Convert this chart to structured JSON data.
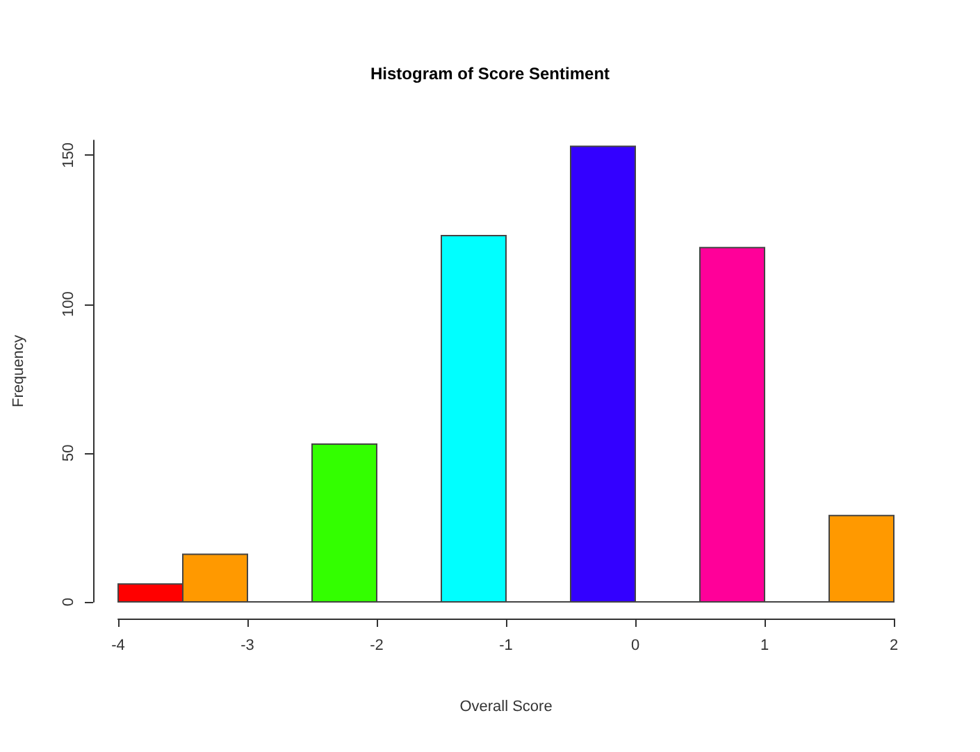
{
  "chart_data": {
    "type": "histogram",
    "title": "Histogram of Score Sentiment",
    "xlabel": "Overall Score",
    "ylabel": "Frequency",
    "bins": [
      -4,
      -3.5,
      -3,
      -2.5,
      -2,
      -1.5,
      -1,
      -0.5,
      0,
      0.5,
      1,
      1.5,
      2
    ],
    "values": [
      6,
      16,
      0,
      53,
      0,
      123,
      0,
      153,
      0,
      119,
      0,
      29
    ],
    "colors": [
      "#ff0000",
      "#ff9900",
      "#444444",
      "#33ff00",
      "#444444",
      "#00ffff",
      "#444444",
      "#3300ff",
      "#444444",
      "#ff0099",
      "#444444",
      "#ff9900"
    ],
    "xlim": [
      -4,
      2
    ],
    "xticks": [
      -4,
      -3,
      -2,
      -1,
      0,
      1,
      2
    ],
    "ylim": [
      0,
      155
    ],
    "yticks": [
      0,
      50,
      100,
      150
    ],
    "grid": false
  }
}
